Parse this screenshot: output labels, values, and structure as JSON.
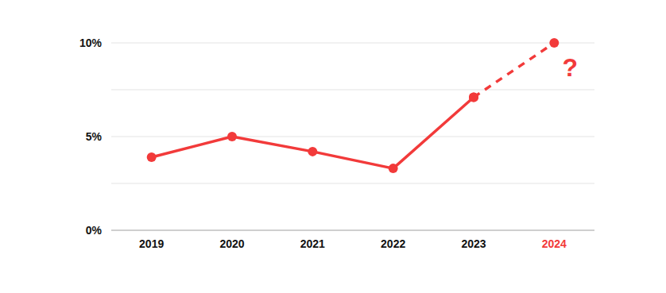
{
  "chart_data": {
    "type": "line",
    "categories": [
      "2019",
      "2020",
      "2021",
      "2022",
      "2023",
      "2024"
    ],
    "series": [
      {
        "color": "#f23a3a",
        "line_style": "solid",
        "marker": "circle",
        "values": [
          3.9,
          5.0,
          4.2,
          3.3,
          7.1,
          null
        ]
      },
      {
        "color": "#f23a3a",
        "line_style": "dashed",
        "marker": "circle",
        "values": [
          null,
          null,
          null,
          null,
          7.1,
          10
        ]
      }
    ],
    "annotation": "?",
    "ylim": [
      0,
      10
    ],
    "yticks": [
      {
        "value": 0,
        "label": "0%"
      },
      {
        "value": 5,
        "label": "5%"
      },
      {
        "value": 10,
        "label": "10%"
      }
    ],
    "grid": true
  }
}
